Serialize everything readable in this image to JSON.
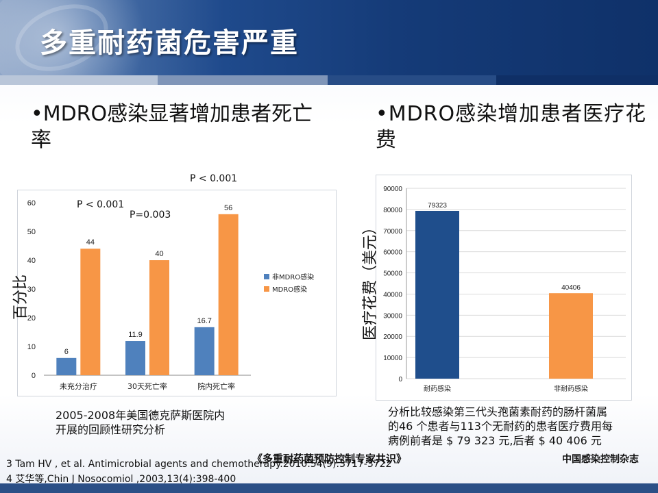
{
  "title": "多重耐药菌危害严重",
  "band_colors": [
    "#b9c6d9",
    "#7f95b8",
    "#274c86",
    "#0f2f66"
  ],
  "bullets": {
    "left": "•MDRO感染显著增加患者死亡率",
    "right": "•MDRO感染增加患者医疗花费"
  },
  "chart_left": {
    "p_labels": [
      "P < 0.001",
      "P=0.003",
      "P < 0.001"
    ],
    "ylabel": "百分比",
    "caption_line1": "2005-2008年美国德克萨斯医院内",
    "caption_line2": "开展的回顾性研究分析"
  },
  "chart_right": {
    "ylabel": "医疗花费（美元）",
    "caption_line1": "分析比较感染第三代头孢菌素耐药的肠杆菌属",
    "caption_line2": "的46 个患者与113个无耐药的患者医疗费用每",
    "caption_line3": "病例前者是 $ 79 323 元,后者 $ 40 406 元"
  },
  "refs": {
    "ref1": "3 Tam HV , et al. Antimicrobial agents and chemotherapy.2010.54(9):3717-3722",
    "overlay": "《多重耐药菌预防控制专家共识》",
    "ref2": "4 艾华等,Chin J Nosocomiol ,2003,13(4):398-400",
    "source": "中国感染控制杂志"
  },
  "chart_data": [
    {
      "type": "bar",
      "categories": [
        "未充分治疗",
        "30天死亡率",
        "院内死亡率"
      ],
      "series": [
        {
          "name": "非MDRO感染",
          "values": [
            6,
            11.9,
            16.7
          ],
          "color": "#4f81bd"
        },
        {
          "name": "MDRO感染",
          "values": [
            44,
            40,
            56
          ],
          "color": "#f79646"
        }
      ],
      "ylim": [
        0,
        60
      ],
      "yticks": [
        0,
        10,
        20,
        30,
        40,
        50,
        60
      ],
      "ylabel": "百分比",
      "legend": "right",
      "grid": false
    },
    {
      "type": "bar",
      "categories": [
        "耐药感染",
        "非耐药感染"
      ],
      "values": [
        79323,
        40406
      ],
      "colors": [
        "#1f4e8c",
        "#f79646"
      ],
      "ylim": [
        0,
        90000
      ],
      "yticks": [
        0,
        10000,
        20000,
        30000,
        40000,
        50000,
        60000,
        70000,
        80000,
        90000
      ],
      "ylabel": "医疗花费（美元）",
      "grid": true
    }
  ]
}
